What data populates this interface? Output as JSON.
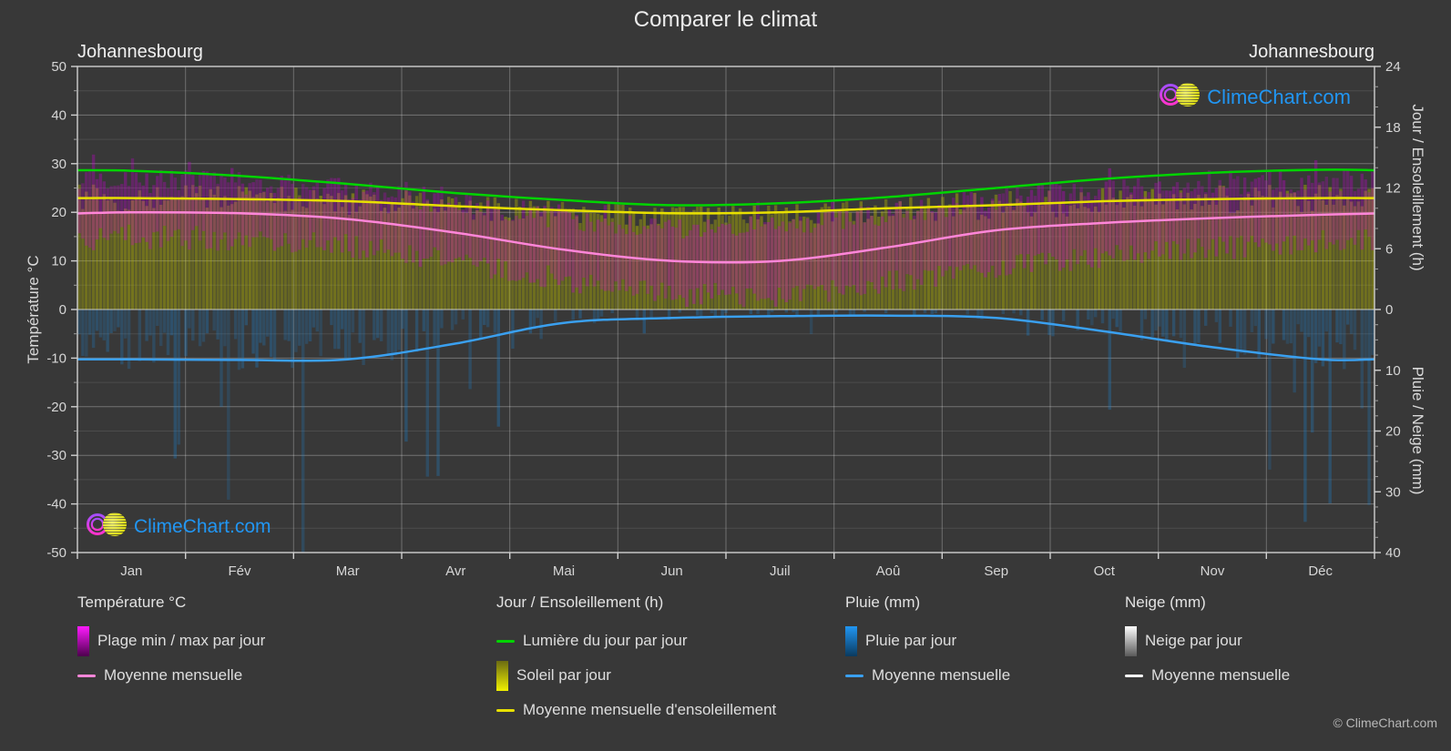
{
  "title": "Comparer le climat",
  "station_left": "Johannesbourg",
  "station_right": "Johannesbourg",
  "watermark": {
    "text": "ClimeChart.com",
    "text_color": "#2196f3"
  },
  "copyright": "© ClimeChart.com",
  "axes": {
    "left_label": "Température °C",
    "left_ticks": [
      50,
      40,
      30,
      20,
      10,
      0,
      -10,
      -20,
      -30,
      -40,
      -50
    ],
    "right_top_label": "Jour / Ensoleillement (h)",
    "right_top_ticks": [
      24,
      18,
      12,
      6,
      0
    ],
    "right_bottom_label": "Pluie / Neige (mm)",
    "right_bottom_ticks": [
      10,
      20,
      30,
      40
    ],
    "months": [
      "Jan",
      "Fév",
      "Mar",
      "Avr",
      "Mai",
      "Jun",
      "Juil",
      "Aoû",
      "Sep",
      "Oct",
      "Nov",
      "Déc"
    ]
  },
  "legend": {
    "groups": [
      {
        "title": "Température °C",
        "items": [
          {
            "type": "gradient",
            "from": "#ff1aff",
            "to": "#4d004d",
            "label": "Plage min / max par jour"
          },
          {
            "type": "line",
            "color": "#ff86d9",
            "label": "Moyenne mensuelle"
          }
        ]
      },
      {
        "title": "Jour / Ensoleillement (h)",
        "items": [
          {
            "type": "line",
            "color": "#00d400",
            "label": "Lumière du jour par jour"
          },
          {
            "type": "gradient",
            "from": "#6b6b12",
            "to": "#f0f000",
            "label": "Soleil par jour"
          },
          {
            "type": "line",
            "color": "#e8e000",
            "label": "Moyenne mensuelle d'ensoleillement"
          }
        ]
      },
      {
        "title": "Pluie (mm)",
        "items": [
          {
            "type": "gradient",
            "from": "#2196f3",
            "to": "#0a3a5f",
            "label": "Pluie par jour"
          },
          {
            "type": "line",
            "color": "#3aa0f0",
            "label": "Moyenne mensuelle"
          }
        ]
      },
      {
        "title": "Neige (mm)",
        "items": [
          {
            "type": "gradient",
            "from": "#ffffff",
            "to": "#5a5a5a",
            "label": "Neige par jour"
          },
          {
            "type": "line",
            "color": "#ffffff",
            "label": "Moyenne mensuelle"
          }
        ]
      }
    ]
  },
  "chart_data": {
    "type": "composite-climate (daily bars + monthly mean lines)",
    "location": "Johannesbourg",
    "months": [
      "Jan",
      "Fév",
      "Mar",
      "Avr",
      "Mai",
      "Jun",
      "Juil",
      "Aoû",
      "Sep",
      "Oct",
      "Nov",
      "Déc"
    ],
    "axis_ranges": {
      "temperature_c": [
        -50,
        50
      ],
      "sun_hours": [
        0,
        24
      ],
      "rain_snow_mm": [
        0,
        40
      ],
      "rain_axis_inverted_below_zero": true
    },
    "series": [
      {
        "key": "daylight_h",
        "name": "Lumière du jour par jour (h)",
        "color": "#00d400",
        "values": [
          13.7,
          13.2,
          12.4,
          11.5,
          10.8,
          10.3,
          10.5,
          11.1,
          12.0,
          12.9,
          13.5,
          13.8
        ]
      },
      {
        "key": "sunshine_h",
        "name": "Moyenne mensuelle d'ensoleillement (h)",
        "color": "#e8e000",
        "values": [
          11.0,
          10.9,
          10.7,
          10.2,
          9.8,
          9.5,
          9.6,
          10.0,
          10.3,
          10.7,
          10.9,
          11.0
        ]
      },
      {
        "key": "tmean_c",
        "name": "Température moyenne mensuelle (°C)",
        "color": "#ff86d9",
        "values": [
          20.0,
          19.8,
          18.6,
          15.8,
          12.3,
          10.0,
          10.0,
          12.8,
          16.3,
          17.8,
          18.8,
          19.5
        ]
      },
      {
        "key": "tmin_c",
        "name": "Température min journalière typique (°C)",
        "color": "#c800d2",
        "values": [
          15.0,
          14.5,
          13.0,
          10.0,
          6.0,
          3.0,
          3.0,
          5.5,
          9.0,
          11.0,
          12.5,
          14.0
        ]
      },
      {
        "key": "tmax_c",
        "name": "Température max journalière typique (°C)",
        "color": "#c800d2",
        "values": [
          26.5,
          26.0,
          24.5,
          21.5,
          19.0,
          16.5,
          17.0,
          19.5,
          23.0,
          24.5,
          25.5,
          26.5
        ]
      },
      {
        "key": "rain_mm_day",
        "name": "Pluie moyenne mensuelle (mm/jour)",
        "color": "#3aa0f0",
        "values": [
          8.2,
          8.3,
          8.2,
          5.6,
          2.2,
          1.4,
          1.1,
          1.0,
          1.4,
          3.6,
          6.2,
          8.2
        ]
      },
      {
        "key": "snow_mm_day",
        "name": "Neige moyenne mensuelle (mm/jour)",
        "color": "#ffffff",
        "values": [
          0,
          0,
          0,
          0,
          0,
          0,
          0,
          0,
          0,
          0,
          0,
          0
        ]
      }
    ],
    "legend_position": "bottom",
    "grid": true
  }
}
